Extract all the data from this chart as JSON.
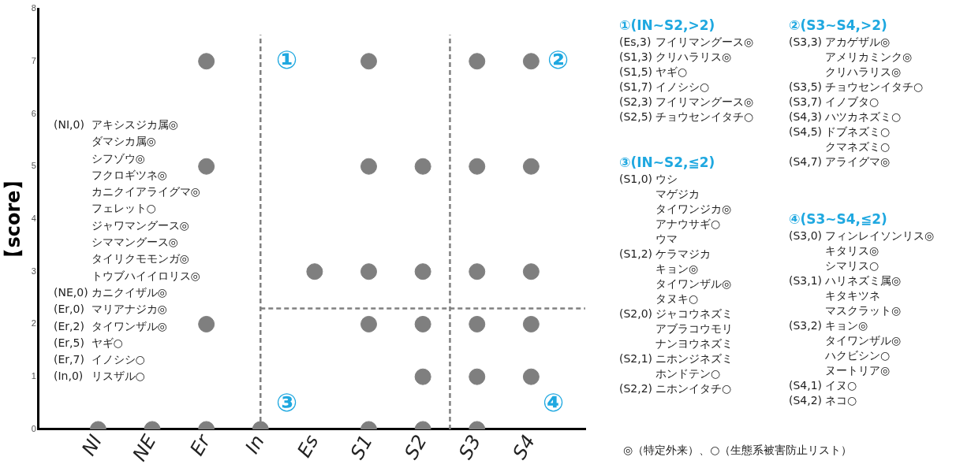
{
  "chart_data": {
    "type": "scatter",
    "ylabel": "【score】",
    "categories": [
      "NI",
      "NE",
      "Er",
      "In",
      "Es",
      "S1",
      "S2",
      "S3",
      "S4"
    ],
    "ylim": [
      0,
      8
    ],
    "yticks": [
      0,
      1,
      2,
      3,
      4,
      5,
      6,
      7,
      8
    ],
    "grid": false,
    "legend": false,
    "marker": "circle",
    "series": [
      {
        "color": "#7f7f7f",
        "x": [
          "NI",
          "NE",
          "Er",
          "Er",
          "Er",
          "Er",
          "In",
          "Es",
          "S1",
          "S1",
          "S1",
          "S1",
          "S1",
          "S2",
          "S2",
          "S2",
          "S2",
          "S2",
          "S3",
          "S3",
          "S3",
          "S3",
          "S3",
          "S3",
          "S4",
          "S4",
          "S4",
          "S4",
          "S4"
        ],
        "values": [
          0,
          0,
          7,
          5,
          2,
          0,
          0,
          3,
          7,
          5,
          3,
          2,
          0,
          5,
          3,
          2,
          1,
          0,
          7,
          5,
          3,
          2,
          1,
          0,
          7,
          5,
          3,
          2,
          1
        ]
      }
    ],
    "ref_lines": [
      {
        "axis": "x",
        "value": "In",
        "color": "#808080",
        "line_style": "dashed"
      },
      {
        "axis": "y",
        "value": 2.3,
        "color": "#808080",
        "line_style": "dashed"
      }
    ],
    "annotations": [
      "(NI,0) アキシスジカ属◎",
      "ダマシカ属◎",
      "シフゾウ◎",
      "フクロギツネ◎",
      "カニクイアライグマ◎",
      "フェレット○",
      "ジャワマングース◎",
      "シママングース◎",
      "タイリクモモンガ◎",
      "トウブハイイロリス◎",
      "(NE,0) カニクイザル◎",
      "(Er,0) マリアナジカ◎",
      "(Er,2) タイワンザル◎",
      "(Er,5) ヤギ○",
      "(Er,7) イノシシ○",
      "(In,0) リスザル○",
      "①(IN~S2,>2)",
      "(Es,3) フイリマングース◎",
      "(S1,3) クリハラリス◎",
      "(S1,5) ヤギ○",
      "(S1,7) イノシシ○",
      "(S2,3) フイリマングース◎",
      "(S2,5) チョウセンイタチ○",
      "②(S3~S4,>2)",
      "(S3,3) アカゲザル◎",
      "アメリカミンク◎",
      "クリハラリス◎",
      "(S3,5) チョウセンイタチ○",
      "(S3,7) イノブタ○",
      "(S4,3) ハツカネズミ○",
      "(S4,5) ドブネズミ○",
      "クマネズミ○",
      "(S4,7) アライグマ◎",
      "③(IN~S2,≦2)",
      "(S1,0) ウシ",
      "マゲジカ",
      "タイワンジカ◎",
      "アナウサギ○",
      "ウマ",
      "(S1,2) ケラマジカ",
      "キョン◎",
      "タイワンザル◎",
      "タヌキ○",
      "(S2,0) ジャコウネズミ",
      "アブラコウモリ",
      "ナンヨウネズミ",
      "(S2,1) ニホンジネズミ",
      "ホンドテン○",
      "(S2,2) ニホンイタチ○",
      "④(S3~S4,≦2)",
      "(S3,0) フィンレイソンリス◎",
      "キタリス◎",
      "シマリス○",
      "(S3,1) ハリネズミ属◎",
      "キタキツネ",
      "マスクラット◎",
      "(S3,2) キョン◎",
      "タイワンザル◎",
      "ハクビシン○",
      "ヌートリア◎",
      "(S4,1) イヌ○",
      "(S4,2) ネコ○",
      "①",
      "②",
      "③",
      "④",
      "◎（特定外来）、○（生態系被害防止リスト）"
    ]
  }
}
